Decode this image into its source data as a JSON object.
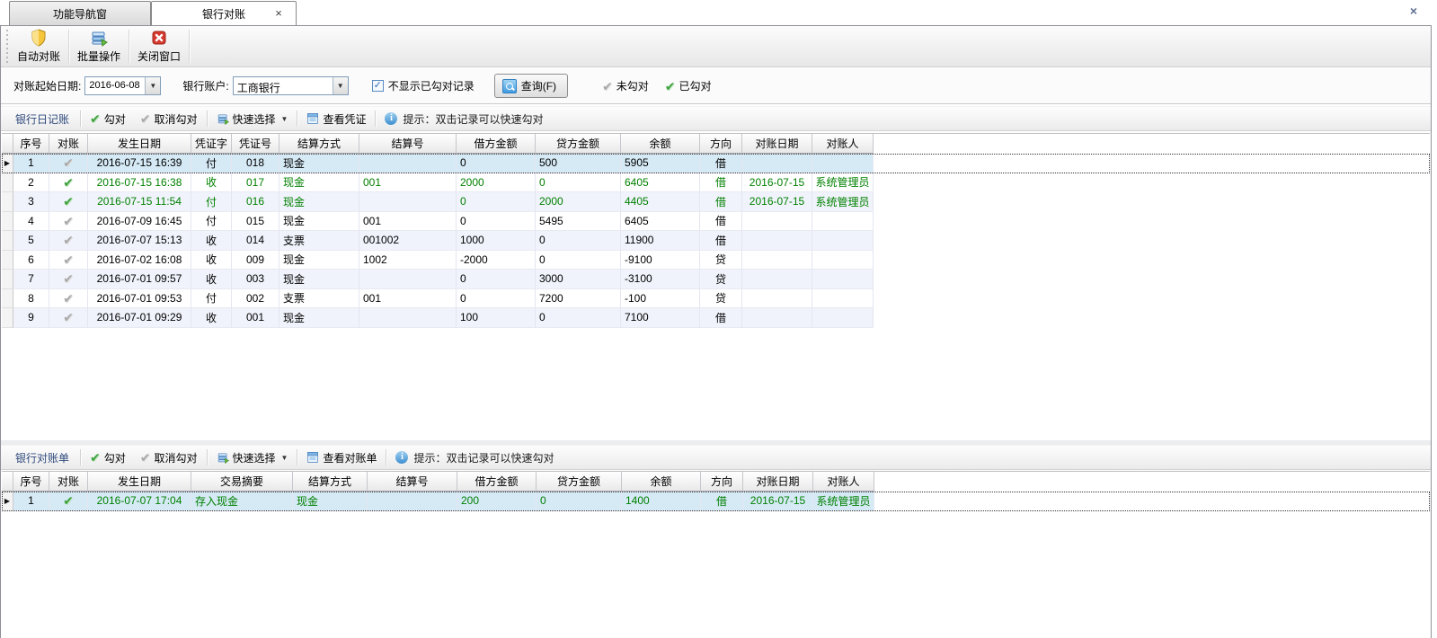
{
  "window": {
    "close_glyph": "×"
  },
  "tabs": {
    "nav": {
      "label": "功能导航窗"
    },
    "recon": {
      "label": "银行对账",
      "close_glyph": "×"
    }
  },
  "main_toolbar": {
    "auto_recon": {
      "label": "自动对账",
      "icon": "shield-icon"
    },
    "batch_ops": {
      "label": "批量操作",
      "icon": "batch-layers-icon"
    },
    "close_window": {
      "label": "关闭窗口",
      "icon": "close-window-icon"
    }
  },
  "filter": {
    "date_label": "对账起始日期:",
    "date_value": "2016-06-08",
    "account_label": "银行账户:",
    "account_value": "工商银行",
    "hide_matched_label": "不显示已勾对记录",
    "hide_matched_checked": true,
    "check_glyph": "✓",
    "query_label": "查询(F)",
    "legend_unmatched": "未勾对",
    "legend_matched": "已勾对"
  },
  "glyphs": {
    "check": "✔",
    "caret_down": "▼",
    "row_marker": "▶"
  },
  "colors": {
    "matched_text": "#008000",
    "matched_check": "#3da33d",
    "unmatched_check": "#a9a9a9",
    "selected_row_bg": "#d6eaf6",
    "section_title": "#2f4a7c"
  },
  "journal": {
    "title": "银行日记账",
    "btn_check": "勾对",
    "btn_uncheck": "取消勾对",
    "btn_quick_select": "快速选择",
    "btn_view": "查看凭证",
    "tip": "提示：双击记录可以快速勾对",
    "table": {
      "columns": [
        "序号",
        "对账",
        "发生日期",
        "凭证字",
        "凭证号",
        "结算方式",
        "结算号",
        "借方金额",
        "贷方金额",
        "余额",
        "方向",
        "对账日期",
        "对账人"
      ],
      "rows": [
        {
          "selected": true,
          "checked": false,
          "green": false,
          "cells": [
            "1",
            "",
            "2016-07-15 16:39",
            "付",
            "018",
            "现金",
            "",
            "0",
            "500",
            "5905",
            "借",
            "",
            ""
          ]
        },
        {
          "selected": false,
          "checked": true,
          "green": true,
          "cells": [
            "2",
            "",
            "2016-07-15 16:38",
            "收",
            "017",
            "现金",
            "001",
            "2000",
            "0",
            "6405",
            "借",
            "2016-07-15",
            "系统管理员"
          ]
        },
        {
          "selected": false,
          "checked": true,
          "green": true,
          "cells": [
            "3",
            "",
            "2016-07-15 11:54",
            "付",
            "016",
            "现金",
            "",
            "0",
            "2000",
            "4405",
            "借",
            "2016-07-15",
            "系统管理员"
          ]
        },
        {
          "selected": false,
          "checked": false,
          "green": false,
          "cells": [
            "4",
            "",
            "2016-07-09 16:45",
            "付",
            "015",
            "现金",
            "001",
            "0",
            "5495",
            "6405",
            "借",
            "",
            ""
          ]
        },
        {
          "selected": false,
          "checked": false,
          "green": false,
          "cells": [
            "5",
            "",
            "2016-07-07 15:13",
            "收",
            "014",
            "支票",
            "001002",
            "1000",
            "0",
            "11900",
            "借",
            "",
            ""
          ]
        },
        {
          "selected": false,
          "checked": false,
          "green": false,
          "cells": [
            "6",
            "",
            "2016-07-02 16:08",
            "收",
            "009",
            "现金",
            "1002",
            "-2000",
            "0",
            "-9100",
            "贷",
            "",
            ""
          ]
        },
        {
          "selected": false,
          "checked": false,
          "green": false,
          "cells": [
            "7",
            "",
            "2016-07-01 09:57",
            "收",
            "003",
            "现金",
            "",
            "0",
            "3000",
            "-3100",
            "贷",
            "",
            ""
          ]
        },
        {
          "selected": false,
          "checked": false,
          "green": false,
          "cells": [
            "8",
            "",
            "2016-07-01 09:53",
            "付",
            "002",
            "支票",
            "001",
            "0",
            "7200",
            "-100",
            "贷",
            "",
            ""
          ]
        },
        {
          "selected": false,
          "checked": false,
          "green": false,
          "cells": [
            "9",
            "",
            "2016-07-01 09:29",
            "收",
            "001",
            "现金",
            "",
            "100",
            "0",
            "7100",
            "借",
            "",
            ""
          ]
        }
      ]
    }
  },
  "statement": {
    "title": "银行对账单",
    "btn_check": "勾对",
    "btn_uncheck": "取消勾对",
    "btn_quick_select": "快速选择",
    "btn_view": "查看对账单",
    "tip": "提示：双击记录可以快速勾对",
    "table": {
      "columns": [
        "序号",
        "对账",
        "发生日期",
        "交易摘要",
        "结算方式",
        "结算号",
        "借方金额",
        "贷方金额",
        "余额",
        "方向",
        "对账日期",
        "对账人"
      ],
      "rows": [
        {
          "selected": true,
          "checked": true,
          "green": true,
          "cells": [
            "1",
            "",
            "2016-07-07 17:04",
            "存入现金",
            "现金",
            "",
            "200",
            "0",
            "1400",
            "借",
            "2016-07-15",
            "系统管理员"
          ]
        }
      ]
    }
  }
}
